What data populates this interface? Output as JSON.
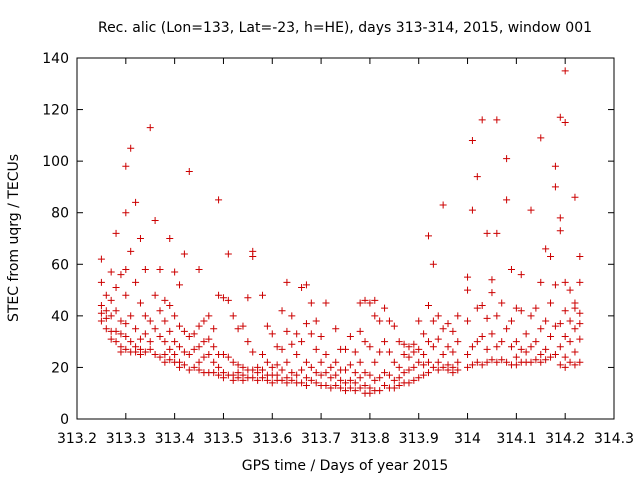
{
  "chart_data": {
    "type": "scatter",
    "title": "Rec. alic (Lon=133, Lat=-23, h=HE), days 313-314, 2015, window 001",
    "xlabel": "GPS time / Days of year 2015",
    "ylabel": "STEC from uqrg / TECUs",
    "xlim": [
      313.2,
      314.3
    ],
    "ylim": [
      0,
      140
    ],
    "xticks": [
      "313.2",
      "313.3",
      "313.4",
      "313.5",
      "313.6",
      "313.7",
      "313.8",
      "313.9",
      "314",
      "314.1",
      "314.2",
      "314.3"
    ],
    "yticks": [
      "0",
      "20",
      "40",
      "60",
      "80",
      "100",
      "120",
      "140"
    ],
    "grid": false,
    "legend": "none",
    "marker": "plus",
    "color": "#cc0000",
    "points": [
      [
        313.25,
        62
      ],
      [
        313.25,
        53
      ],
      [
        313.25,
        44
      ],
      [
        313.25,
        41
      ],
      [
        313.25,
        38
      ],
      [
        313.26,
        48
      ],
      [
        313.26,
        42
      ],
      [
        313.26,
        39
      ],
      [
        313.26,
        35
      ],
      [
        313.27,
        57
      ],
      [
        313.27,
        46
      ],
      [
        313.27,
        40
      ],
      [
        313.27,
        34
      ],
      [
        313.27,
        31
      ],
      [
        313.28,
        72
      ],
      [
        313.28,
        51
      ],
      [
        313.28,
        42
      ],
      [
        313.28,
        34
      ],
      [
        313.28,
        30
      ],
      [
        313.29,
        56
      ],
      [
        313.29,
        38
      ],
      [
        313.29,
        33
      ],
      [
        313.29,
        28
      ],
      [
        313.29,
        26
      ],
      [
        313.3,
        98
      ],
      [
        313.3,
        80
      ],
      [
        313.3,
        58
      ],
      [
        313.3,
        48
      ],
      [
        313.3,
        37
      ],
      [
        313.3,
        32
      ],
      [
        313.3,
        27
      ],
      [
        313.31,
        105
      ],
      [
        313.31,
        65
      ],
      [
        313.31,
        40
      ],
      [
        313.31,
        30
      ],
      [
        313.31,
        26
      ],
      [
        313.32,
        84
      ],
      [
        313.32,
        53
      ],
      [
        313.32,
        35
      ],
      [
        313.32,
        28
      ],
      [
        313.32,
        26
      ],
      [
        313.33,
        70
      ],
      [
        313.33,
        45
      ],
      [
        313.33,
        31
      ],
      [
        313.33,
        27
      ],
      [
        313.33,
        25
      ],
      [
        313.34,
        58
      ],
      [
        313.34,
        40
      ],
      [
        313.34,
        33
      ],
      [
        313.34,
        26
      ],
      [
        313.35,
        113
      ],
      [
        313.35,
        38
      ],
      [
        313.35,
        30
      ],
      [
        313.35,
        27
      ],
      [
        313.36,
        77
      ],
      [
        313.36,
        48
      ],
      [
        313.36,
        35
      ],
      [
        313.36,
        25
      ],
      [
        313.37,
        58
      ],
      [
        313.37,
        42
      ],
      [
        313.37,
        32
      ],
      [
        313.37,
        24
      ],
      [
        313.38,
        46
      ],
      [
        313.38,
        38
      ],
      [
        313.38,
        30
      ],
      [
        313.38,
        25
      ],
      [
        313.38,
        22
      ],
      [
        313.39,
        70
      ],
      [
        313.39,
        44
      ],
      [
        313.39,
        34
      ],
      [
        313.39,
        27
      ],
      [
        313.39,
        23
      ],
      [
        313.4,
        57
      ],
      [
        313.4,
        40
      ],
      [
        313.4,
        30
      ],
      [
        313.4,
        25
      ],
      [
        313.4,
        22
      ],
      [
        313.41,
        52
      ],
      [
        313.41,
        36
      ],
      [
        313.41,
        28
      ],
      [
        313.41,
        22
      ],
      [
        313.41,
        20
      ],
      [
        313.42,
        64
      ],
      [
        313.42,
        34
      ],
      [
        313.42,
        26
      ],
      [
        313.42,
        21
      ],
      [
        313.43,
        96
      ],
      [
        313.43,
        32
      ],
      [
        313.43,
        25
      ],
      [
        313.43,
        19
      ],
      [
        313.44,
        33
      ],
      [
        313.44,
        27
      ],
      [
        313.44,
        20
      ],
      [
        313.45,
        58
      ],
      [
        313.45,
        36
      ],
      [
        313.45,
        28
      ],
      [
        313.45,
        22
      ],
      [
        313.45,
        19
      ],
      [
        313.46,
        38
      ],
      [
        313.46,
        30
      ],
      [
        313.46,
        24
      ],
      [
        313.46,
        18
      ],
      [
        313.47,
        40
      ],
      [
        313.47,
        31
      ],
      [
        313.47,
        25
      ],
      [
        313.47,
        18
      ],
      [
        313.48,
        35
      ],
      [
        313.48,
        28
      ],
      [
        313.48,
        22
      ],
      [
        313.48,
        18
      ],
      [
        313.49,
        85
      ],
      [
        313.49,
        48
      ],
      [
        313.49,
        25
      ],
      [
        313.49,
        20
      ],
      [
        313.49,
        17
      ],
      [
        313.5,
        47
      ],
      [
        313.5,
        25
      ],
      [
        313.5,
        18
      ],
      [
        313.5,
        16
      ],
      [
        313.51,
        64
      ],
      [
        313.51,
        46
      ],
      [
        313.51,
        24
      ],
      [
        313.51,
        17
      ],
      [
        313.52,
        40
      ],
      [
        313.52,
        22
      ],
      [
        313.52,
        17
      ],
      [
        313.52,
        15
      ],
      [
        313.53,
        35
      ],
      [
        313.53,
        21
      ],
      [
        313.53,
        18
      ],
      [
        313.53,
        16
      ],
      [
        313.54,
        36
      ],
      [
        313.54,
        20
      ],
      [
        313.54,
        17
      ],
      [
        313.54,
        15
      ],
      [
        313.55,
        47
      ],
      [
        313.55,
        30
      ],
      [
        313.55,
        19
      ],
      [
        313.55,
        16
      ],
      [
        313.56,
        65
      ],
      [
        313.56,
        63
      ],
      [
        313.56,
        26
      ],
      [
        313.56,
        19
      ],
      [
        313.56,
        16
      ],
      [
        313.57,
        20
      ],
      [
        313.57,
        18
      ],
      [
        313.57,
        15
      ],
      [
        313.58,
        48
      ],
      [
        313.58,
        25
      ],
      [
        313.58,
        19
      ],
      [
        313.58,
        16
      ],
      [
        313.59,
        36
      ],
      [
        313.59,
        22
      ],
      [
        313.59,
        17
      ],
      [
        313.59,
        15
      ],
      [
        313.6,
        33
      ],
      [
        313.6,
        20
      ],
      [
        313.6,
        17
      ],
      [
        313.6,
        14
      ],
      [
        313.61,
        28
      ],
      [
        313.61,
        21
      ],
      [
        313.61,
        17
      ],
      [
        313.61,
        15
      ],
      [
        313.62,
        42
      ],
      [
        313.62,
        27
      ],
      [
        313.62,
        19
      ],
      [
        313.62,
        15
      ],
      [
        313.63,
        53
      ],
      [
        313.63,
        34
      ],
      [
        313.63,
        22
      ],
      [
        313.63,
        16
      ],
      [
        313.63,
        14
      ],
      [
        313.64,
        40
      ],
      [
        313.64,
        29
      ],
      [
        313.64,
        18
      ],
      [
        313.64,
        15
      ],
      [
        313.65,
        33
      ],
      [
        313.65,
        25
      ],
      [
        313.65,
        17
      ],
      [
        313.65,
        14
      ],
      [
        313.66,
        51
      ],
      [
        313.66,
        30
      ],
      [
        313.66,
        19
      ],
      [
        313.66,
        14
      ],
      [
        313.67,
        52
      ],
      [
        313.67,
        37
      ],
      [
        313.67,
        22
      ],
      [
        313.67,
        16
      ],
      [
        313.67,
        13
      ],
      [
        313.68,
        45
      ],
      [
        313.68,
        33
      ],
      [
        313.68,
        20
      ],
      [
        313.68,
        15
      ],
      [
        313.69,
        38
      ],
      [
        313.69,
        27
      ],
      [
        313.69,
        18
      ],
      [
        313.69,
        14
      ],
      [
        313.7,
        32
      ],
      [
        313.7,
        22
      ],
      [
        313.7,
        17
      ],
      [
        313.7,
        13
      ],
      [
        313.71,
        45
      ],
      [
        313.71,
        25
      ],
      [
        313.71,
        18
      ],
      [
        313.71,
        13
      ],
      [
        313.72,
        20
      ],
      [
        313.72,
        16
      ],
      [
        313.72,
        12
      ],
      [
        313.73,
        35
      ],
      [
        313.73,
        22
      ],
      [
        313.73,
        17
      ],
      [
        313.73,
        13
      ],
      [
        313.74,
        27
      ],
      [
        313.74,
        19
      ],
      [
        313.74,
        15
      ],
      [
        313.74,
        12
      ],
      [
        313.75,
        27
      ],
      [
        313.75,
        19
      ],
      [
        313.75,
        14
      ],
      [
        313.75,
        11
      ],
      [
        313.76,
        32
      ],
      [
        313.76,
        21
      ],
      [
        313.76,
        15
      ],
      [
        313.76,
        12
      ],
      [
        313.77,
        26
      ],
      [
        313.77,
        18
      ],
      [
        313.77,
        14
      ],
      [
        313.77,
        11
      ],
      [
        313.78,
        45
      ],
      [
        313.78,
        34
      ],
      [
        313.78,
        22
      ],
      [
        313.78,
        16
      ],
      [
        313.78,
        12
      ],
      [
        313.79,
        46
      ],
      [
        313.79,
        30
      ],
      [
        313.79,
        18
      ],
      [
        313.79,
        13
      ],
      [
        313.79,
        10
      ],
      [
        313.8,
        45
      ],
      [
        313.8,
        28
      ],
      [
        313.8,
        17
      ],
      [
        313.8,
        12
      ],
      [
        313.8,
        10
      ],
      [
        313.81,
        46
      ],
      [
        313.81,
        40
      ],
      [
        313.81,
        22
      ],
      [
        313.81,
        15
      ],
      [
        313.81,
        11
      ],
      [
        313.82,
        38
      ],
      [
        313.82,
        26
      ],
      [
        313.82,
        16
      ],
      [
        313.82,
        11
      ],
      [
        313.83,
        43
      ],
      [
        313.83,
        30
      ],
      [
        313.83,
        18
      ],
      [
        313.83,
        13
      ],
      [
        313.84,
        38
      ],
      [
        313.84,
        26
      ],
      [
        313.84,
        17
      ],
      [
        313.84,
        12
      ],
      [
        313.85,
        36
      ],
      [
        313.85,
        22
      ],
      [
        313.85,
        15
      ],
      [
        313.85,
        12
      ],
      [
        313.86,
        30
      ],
      [
        313.86,
        20
      ],
      [
        313.86,
        16
      ],
      [
        313.86,
        13
      ],
      [
        313.87,
        29
      ],
      [
        313.87,
        25
      ],
      [
        313.87,
        18
      ],
      [
        313.87,
        14
      ],
      [
        313.88,
        28
      ],
      [
        313.88,
        24
      ],
      [
        313.88,
        19
      ],
      [
        313.88,
        14
      ],
      [
        313.89,
        29
      ],
      [
        313.89,
        26
      ],
      [
        313.89,
        20
      ],
      [
        313.89,
        15
      ],
      [
        313.9,
        38
      ],
      [
        313.9,
        27
      ],
      [
        313.9,
        22
      ],
      [
        313.9,
        16
      ],
      [
        313.91,
        33
      ],
      [
        313.91,
        25
      ],
      [
        313.91,
        21
      ],
      [
        313.91,
        17
      ],
      [
        313.92,
        71
      ],
      [
        313.92,
        44
      ],
      [
        313.92,
        30
      ],
      [
        313.92,
        22
      ],
      [
        313.92,
        18
      ],
      [
        313.93,
        60
      ],
      [
        313.93,
        38
      ],
      [
        313.93,
        28
      ],
      [
        313.93,
        20
      ],
      [
        313.94,
        40
      ],
      [
        313.94,
        31
      ],
      [
        313.94,
        22
      ],
      [
        313.94,
        19
      ],
      [
        313.95,
        83
      ],
      [
        313.95,
        35
      ],
      [
        313.95,
        25
      ],
      [
        313.95,
        20
      ],
      [
        313.96,
        37
      ],
      [
        313.96,
        28
      ],
      [
        313.96,
        21
      ],
      [
        313.96,
        19
      ],
      [
        313.97,
        34
      ],
      [
        313.97,
        26
      ],
      [
        313.97,
        20
      ],
      [
        313.97,
        18
      ],
      [
        313.98,
        40
      ],
      [
        313.98,
        30
      ],
      [
        313.98,
        22
      ],
      [
        313.98,
        19
      ],
      [
        314.0,
        55
      ],
      [
        314.0,
        50
      ],
      [
        314.0,
        38
      ],
      [
        314.0,
        25
      ],
      [
        314.0,
        20
      ],
      [
        314.01,
        108
      ],
      [
        314.01,
        81
      ],
      [
        314.01,
        28
      ],
      [
        314.01,
        21
      ],
      [
        314.02,
        94
      ],
      [
        314.02,
        43
      ],
      [
        314.02,
        30
      ],
      [
        314.02,
        22
      ],
      [
        314.03,
        116
      ],
      [
        314.03,
        44
      ],
      [
        314.03,
        32
      ],
      [
        314.03,
        21
      ],
      [
        314.04,
        72
      ],
      [
        314.04,
        39
      ],
      [
        314.04,
        27
      ],
      [
        314.04,
        22
      ],
      [
        314.05,
        54
      ],
      [
        314.05,
        49
      ],
      [
        314.05,
        33
      ],
      [
        314.05,
        23
      ],
      [
        314.06,
        116
      ],
      [
        314.06,
        72
      ],
      [
        314.06,
        40
      ],
      [
        314.06,
        28
      ],
      [
        314.06,
        22
      ],
      [
        314.07,
        45
      ],
      [
        314.07,
        30
      ],
      [
        314.07,
        23
      ],
      [
        314.08,
        101
      ],
      [
        314.08,
        85
      ],
      [
        314.08,
        35
      ],
      [
        314.08,
        22
      ],
      [
        314.09,
        58
      ],
      [
        314.09,
        38
      ],
      [
        314.09,
        28
      ],
      [
        314.09,
        21
      ],
      [
        314.1,
        43
      ],
      [
        314.1,
        30
      ],
      [
        314.1,
        24
      ],
      [
        314.1,
        21
      ],
      [
        314.11,
        56
      ],
      [
        314.11,
        42
      ],
      [
        314.11,
        27
      ],
      [
        314.11,
        22
      ],
      [
        314.12,
        33
      ],
      [
        314.12,
        26
      ],
      [
        314.12,
        22
      ],
      [
        314.13,
        81
      ],
      [
        314.13,
        40
      ],
      [
        314.13,
        28
      ],
      [
        314.13,
        22
      ],
      [
        314.14,
        43
      ],
      [
        314.14,
        30
      ],
      [
        314.14,
        23
      ],
      [
        314.15,
        109
      ],
      [
        314.15,
        53
      ],
      [
        314.15,
        35
      ],
      [
        314.15,
        25
      ],
      [
        314.15,
        22
      ],
      [
        314.16,
        66
      ],
      [
        314.16,
        38
      ],
      [
        314.16,
        27
      ],
      [
        314.16,
        23
      ],
      [
        314.17,
        63
      ],
      [
        314.17,
        45
      ],
      [
        314.17,
        32
      ],
      [
        314.17,
        24
      ],
      [
        314.18,
        98
      ],
      [
        314.18,
        90
      ],
      [
        314.18,
        52
      ],
      [
        314.18,
        36
      ],
      [
        314.18,
        25
      ],
      [
        314.19,
        117
      ],
      [
        314.19,
        78
      ],
      [
        314.19,
        73
      ],
      [
        314.19,
        37
      ],
      [
        314.19,
        28
      ],
      [
        314.19,
        21
      ],
      [
        314.2,
        135
      ],
      [
        314.2,
        115
      ],
      [
        314.2,
        53
      ],
      [
        314.2,
        42
      ],
      [
        314.2,
        32
      ],
      [
        314.2,
        24
      ],
      [
        314.2,
        20
      ],
      [
        314.21,
        50
      ],
      [
        314.21,
        38
      ],
      [
        314.21,
        30
      ],
      [
        314.21,
        22
      ],
      [
        314.22,
        86
      ],
      [
        314.22,
        45
      ],
      [
        314.22,
        43
      ],
      [
        314.22,
        35
      ],
      [
        314.22,
        26
      ],
      [
        314.22,
        21
      ],
      [
        314.23,
        63
      ],
      [
        314.23,
        53
      ],
      [
        314.23,
        41
      ],
      [
        314.23,
        37
      ],
      [
        314.23,
        31
      ],
      [
        314.23,
        22
      ]
    ]
  }
}
